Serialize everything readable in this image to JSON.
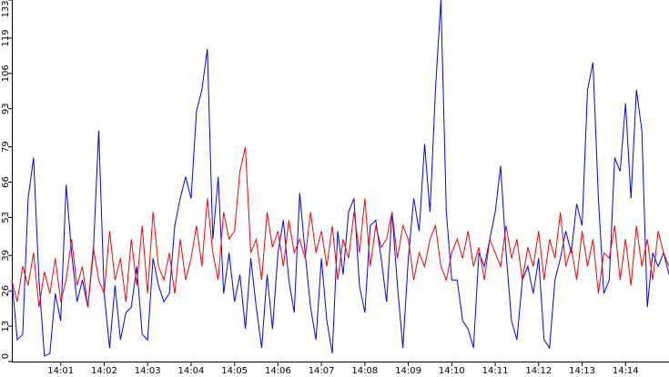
{
  "chart_data": {
    "type": "line",
    "categories": [
      null,
      null,
      null,
      null,
      null,
      null,
      null,
      null,
      null,
      "14:01",
      null,
      null,
      null,
      null,
      null,
      null,
      null,
      "14:02",
      null,
      null,
      null,
      null,
      null,
      null,
      null,
      "14:03",
      null,
      null,
      null,
      null,
      null,
      null,
      null,
      "14:04",
      null,
      null,
      null,
      null,
      null,
      null,
      null,
      "14:05",
      null,
      null,
      null,
      null,
      null,
      null,
      null,
      "14:06",
      null,
      null,
      null,
      null,
      null,
      null,
      null,
      "14:07",
      null,
      null,
      null,
      null,
      null,
      null,
      null,
      "14:08",
      null,
      null,
      null,
      null,
      null,
      null,
      null,
      "14:09",
      null,
      null,
      null,
      null,
      null,
      null,
      null,
      "14:10",
      null,
      null,
      null,
      null,
      null,
      null,
      null,
      "14:11",
      null,
      null,
      null,
      null,
      null,
      null,
      null,
      "14:12",
      null,
      null,
      null,
      null,
      null,
      null,
      null,
      "14:13",
      null,
      null,
      null,
      null,
      null,
      null,
      null,
      "14:14",
      null,
      null,
      null,
      null,
      null,
      null,
      null,
      null
    ],
    "series": [
      {
        "color": "#0000ff",
        "values": [
          30,
          8,
          10,
          60,
          75,
          30,
          2,
          3,
          25,
          15,
          65,
          40,
          22,
          30,
          20,
          40,
          85,
          25,
          5,
          28,
          8,
          18,
          20,
          35,
          10,
          8,
          38,
          28,
          22,
          25,
          50,
          60,
          68,
          60,
          92,
          100,
          115,
          45,
          68,
          25,
          40,
          22,
          32,
          12,
          38,
          20,
          5,
          32,
          12,
          40,
          52,
          30,
          18,
          62,
          40,
          20,
          8,
          38,
          15,
          3,
          48,
          32,
          55,
          60,
          28,
          18,
          50,
          52,
          38,
          22,
          55,
          28,
          5,
          38,
          60,
          48,
          80,
          55,
          100,
          133,
          55,
          30,
          30,
          15,
          12,
          5,
          40,
          35,
          45,
          55,
          72,
          40,
          15,
          8,
          30,
          35,
          25,
          38,
          8,
          5,
          30,
          38,
          48,
          40,
          58,
          50,
          100,
          110,
          60,
          25,
          30,
          75,
          70,
          95,
          60,
          100,
          85,
          20,
          40,
          35,
          40,
          32
        ]
      },
      {
        "color": "#ff0000",
        "values": [
          30,
          22,
          35,
          28,
          40,
          20,
          33,
          25,
          38,
          22,
          30,
          45,
          28,
          35,
          20,
          42,
          30,
          25,
          48,
          30,
          38,
          22,
          45,
          28,
          50,
          25,
          55,
          35,
          30,
          40,
          25,
          45,
          30,
          38,
          50,
          35,
          60,
          40,
          30,
          55,
          45,
          48,
          70,
          79,
          40,
          45,
          30,
          55,
          42,
          48,
          35,
          52,
          40,
          45,
          38,
          55,
          40,
          48,
          35,
          50,
          30,
          45,
          38,
          55,
          40,
          60,
          35,
          50,
          42,
          45,
          55,
          38,
          50,
          45,
          30,
          40,
          35,
          45,
          50,
          35,
          30,
          40,
          45,
          38,
          48,
          35,
          42,
          30,
          45,
          40,
          35,
          50,
          38,
          45,
          30,
          42,
          35,
          48,
          30,
          45,
          38,
          55,
          35,
          42,
          30,
          48,
          35,
          45,
          25,
          40,
          38,
          50,
          30,
          45,
          28,
          50,
          35,
          45,
          30,
          48,
          40,
          35
        ]
      }
    ],
    "ylim": [
      0,
      133
    ],
    "yticks": [
      0,
      13,
      26,
      39,
      53,
      66,
      79,
      93,
      106,
      119,
      133
    ]
  }
}
